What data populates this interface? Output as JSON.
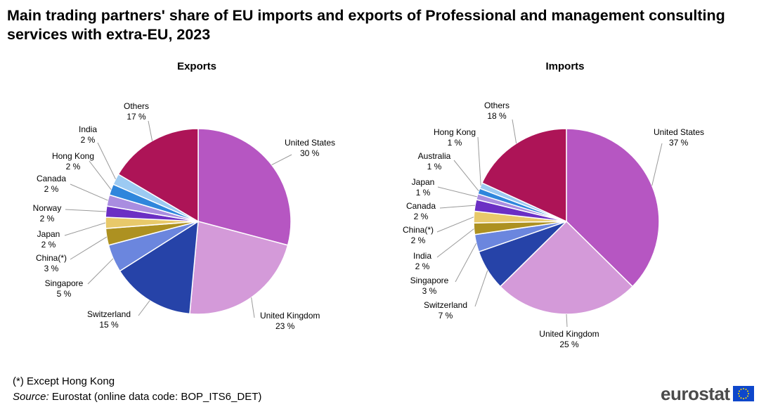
{
  "title": "Main trading partners' share of EU imports and exports of Professional and management consulting services with extra-EU, 2023",
  "footnote": "(*) Except Hong Kong",
  "source": {
    "label": "Source:",
    "text": " Eurostat (online data code: BOP_ITS6_DET)"
  },
  "logo": {
    "text": "eurostat"
  },
  "chart_data": [
    {
      "type": "pie",
      "title": "Exports",
      "unit": "%",
      "slices": [
        {
          "label": "United States",
          "value": 30,
          "color": "#b656c2"
        },
        {
          "label": "United Kingdom",
          "value": 23,
          "color": "#d49ad9"
        },
        {
          "label": "Switzerland",
          "value": 15,
          "color": "#2643a8"
        },
        {
          "label": "Singapore",
          "value": 5,
          "color": "#6b86de"
        },
        {
          "label": "China(*)",
          "value": 3,
          "color": "#ad9121"
        },
        {
          "label": "Japan",
          "value": 2,
          "color": "#e8c96a"
        },
        {
          "label": "Norway",
          "value": 2,
          "color": "#6b2fc4"
        },
        {
          "label": "Canada",
          "value": 2,
          "color": "#a98de0"
        },
        {
          "label": "Hong Kong",
          "value": 2,
          "color": "#2f86dc"
        },
        {
          "label": "India",
          "value": 2,
          "color": "#9ccaf2"
        },
        {
          "label": "Others",
          "value": 17,
          "color": "#ad1457"
        }
      ]
    },
    {
      "type": "pie",
      "title": "Imports",
      "unit": "%",
      "slices": [
        {
          "label": "United States",
          "value": 37,
          "color": "#b656c2"
        },
        {
          "label": "United Kingdom",
          "value": 25,
          "color": "#d49ad9"
        },
        {
          "label": "Switzerland",
          "value": 7,
          "color": "#2643a8"
        },
        {
          "label": "Singapore",
          "value": 3,
          "color": "#6b86de"
        },
        {
          "label": "India",
          "value": 2,
          "color": "#ad9121"
        },
        {
          "label": "China(*)",
          "value": 2,
          "color": "#e8c96a"
        },
        {
          "label": "Canada",
          "value": 2,
          "color": "#6b2fc4"
        },
        {
          "label": "Japan",
          "value": 1,
          "color": "#a98de0"
        },
        {
          "label": "Australia",
          "value": 1,
          "color": "#2f86dc"
        },
        {
          "label": "Hong Kong",
          "value": 1,
          "color": "#9ccaf2"
        },
        {
          "label": "Others",
          "value": 18,
          "color": "#ad1457"
        }
      ]
    }
  ]
}
